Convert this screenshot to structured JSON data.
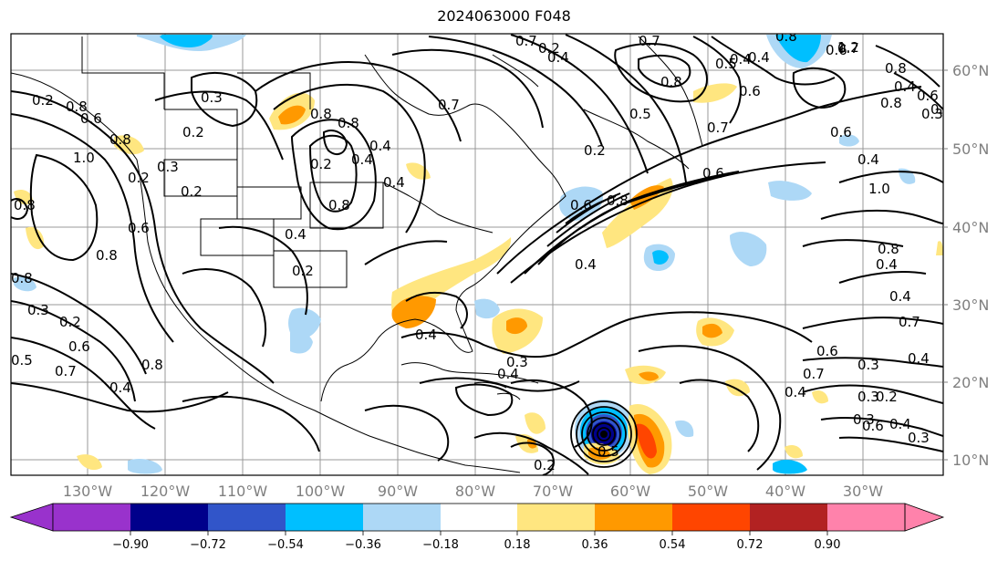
{
  "title": "2024063000 F048",
  "map": {
    "lat_labels": [
      "60°N",
      "50°N",
      "40°N",
      "30°N",
      "20°N",
      "10°N"
    ],
    "lon_labels": [
      "130°W",
      "120°W",
      "110°W",
      "100°W",
      "90°W",
      "80°W",
      "70°W",
      "60°W",
      "50°W",
      "40°W",
      "30°W"
    ],
    "gridlines": true,
    "coastlines": true,
    "state_borders": true,
    "contour_color": "#000000"
  },
  "contour_labels": [
    "0.3",
    "0.2",
    "0.3",
    "0.2",
    "1.0",
    "0.8",
    "0.6",
    "0.8",
    "0.6",
    "0.4",
    "0.2",
    "0.4",
    "0.8",
    "0.4",
    "0.2",
    "0.4",
    "0.5",
    "0.3",
    "0.4",
    "0.2",
    "0.4",
    "0.8",
    "0.4",
    "0.3",
    "0.7",
    "0.5",
    "0.6",
    "0.4",
    "0.8",
    "0.2",
    "0.6",
    "0.3",
    "0.2",
    "0.6",
    "0.4",
    "0.7",
    "0.4",
    "0.3",
    "0.4",
    "0.8",
    "0.8",
    "0.4",
    "0.8",
    "0.6",
    "0.8",
    "0.7",
    "0.4",
    "0.8",
    "0.2",
    "0.8",
    "0.6",
    "0.8",
    "0.7",
    "0.5",
    "0.2",
    "0.2",
    "0.4",
    "0.2",
    "0.7",
    "0.8",
    "0.7",
    "1.0",
    "0.8",
    "0.8",
    "0.7",
    "0.4",
    "0.3",
    "0.6",
    "0.3",
    "0.6",
    "0.8",
    "0.6",
    "0.7",
    "1.2",
    "0.4",
    "0.5",
    "0.4",
    "0.4",
    "0.3",
    "0.6"
  ],
  "colorbar": {
    "ticks": [
      "−0.90",
      "−0.72",
      "−0.54",
      "−0.36",
      "−0.18",
      "0.18",
      "0.36",
      "0.54",
      "0.72",
      "0.90"
    ],
    "colors": [
      "#9932cc",
      "#00008b",
      "#3155c9",
      "#00bfff",
      "#add8f6",
      "#ffffff",
      "#ffe680",
      "#ff9900",
      "#ff4500",
      "#b22222",
      "#ff82ab"
    ]
  }
}
